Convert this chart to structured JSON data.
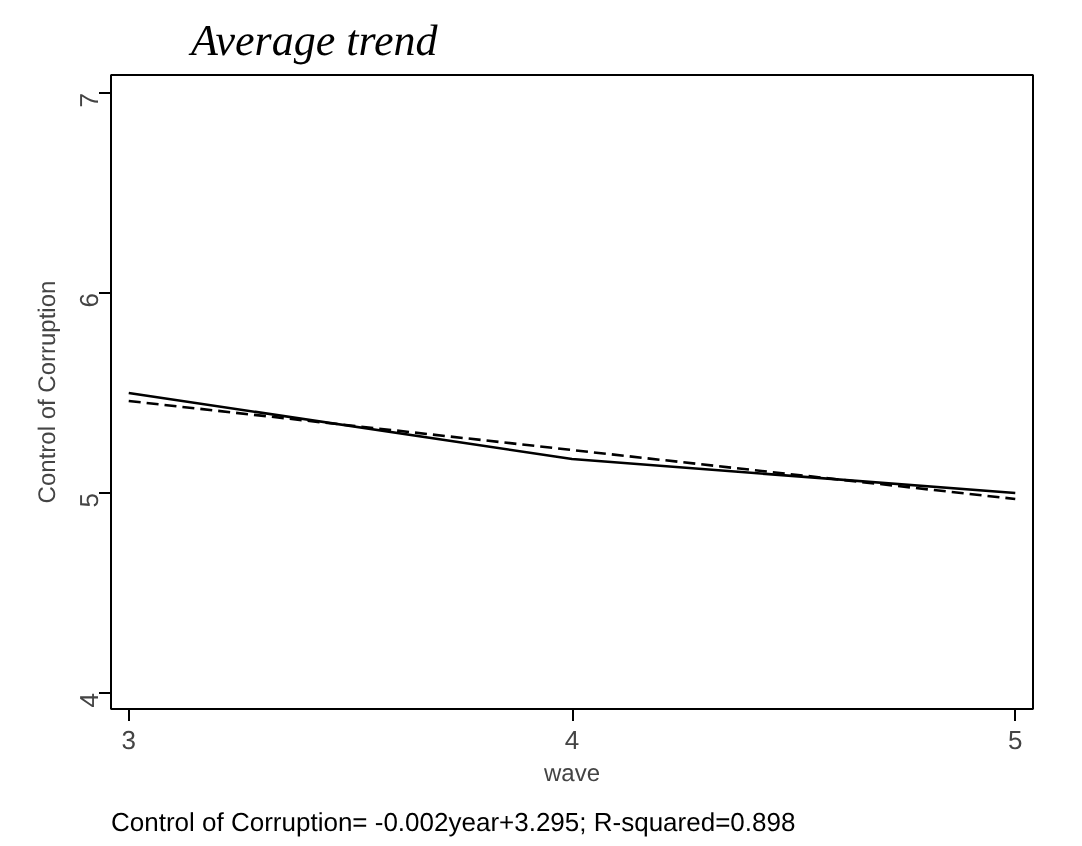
{
  "chart_data": {
    "type": "line",
    "title": "Average trend",
    "xlabel": "wave",
    "ylabel": "Control of Corruption",
    "annotations": [
      "Control of Corruption= -0.002year+3.295; R-squared=0.898"
    ],
    "x": [
      3,
      4,
      5
    ],
    "series": [
      {
        "color": "#000000",
        "values": [
          5.5,
          5.17,
          5.0
        ],
        "line_style": "solid"
      },
      {
        "color": "#000000",
        "x": [
          3,
          5
        ],
        "values": [
          5.46,
          4.97
        ],
        "line_style": "dashed"
      }
    ],
    "xlim": [
      2.96,
      5.04
    ],
    "ylim": [
      3.92,
      7.09
    ],
    "xticks": [
      3,
      4,
      5
    ],
    "yticks": [
      4,
      5,
      6,
      7
    ],
    "grid": false,
    "marker": "none"
  }
}
